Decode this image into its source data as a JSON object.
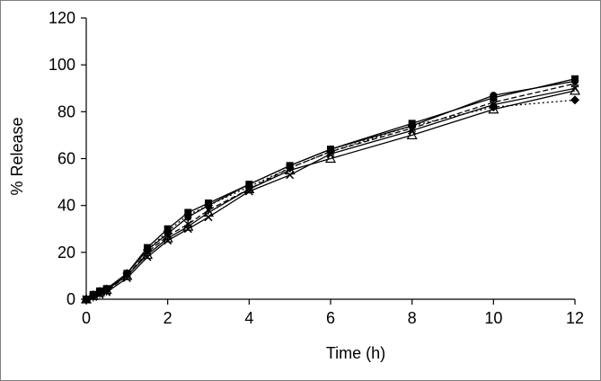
{
  "chart_data": {
    "type": "line",
    "title": "",
    "xlabel": "Time (h)",
    "ylabel": "% Release",
    "xlim": [
      0,
      12
    ],
    "ylim": [
      0,
      120
    ],
    "xticks": [
      0,
      2,
      4,
      6,
      8,
      10,
      12
    ],
    "yticks": [
      0,
      20,
      40,
      60,
      80,
      100,
      120
    ],
    "xtick_labels": [
      "0",
      "2",
      "4",
      "6",
      "8",
      "10",
      "12"
    ],
    "ytick_labels": [
      "0",
      "20",
      "40",
      "60",
      "80",
      "100",
      "120"
    ],
    "grid": false,
    "legend": "none",
    "x": [
      0,
      0.17,
      0.33,
      0.5,
      1,
      1.5,
      2,
      2.5,
      3,
      4,
      5,
      6,
      8,
      10,
      12
    ],
    "series": [
      {
        "marker": "diamond",
        "line_style": "dotted",
        "color": "#000000",
        "values": [
          0,
          1.5,
          3,
          4,
          11,
          21,
          29,
          36,
          40,
          48,
          56,
          63,
          74,
          82,
          85
        ]
      },
      {
        "marker": "square",
        "line_style": "solid",
        "color": "#000000",
        "values": [
          0,
          2,
          3.5,
          4.5,
          11,
          22,
          30,
          37,
          41,
          49,
          57,
          64,
          75,
          86,
          94
        ]
      },
      {
        "marker": "triangle",
        "line_style": "solid",
        "color": "#000000",
        "values": [
          0,
          1.5,
          3,
          4,
          10,
          19,
          26,
          31,
          37,
          47,
          55,
          60,
          70,
          81,
          89
        ]
      },
      {
        "marker": "x",
        "line_style": "solid",
        "color": "#000000",
        "values": [
          0,
          1,
          2,
          3,
          9,
          18,
          25,
          30,
          35,
          46,
          53,
          62,
          72,
          83,
          90
        ]
      },
      {
        "marker": "asterisk",
        "line_style": "dashed",
        "color": "#000000",
        "values": [
          0,
          1,
          2.5,
          3.5,
          10,
          20,
          27,
          32,
          38,
          47,
          56,
          63,
          73,
          84,
          92
        ]
      },
      {
        "marker": "circle",
        "line_style": "solid",
        "color": "#000000",
        "values": [
          0,
          1.5,
          3,
          4,
          11,
          21,
          28,
          35,
          40,
          49,
          57,
          64,
          74,
          87,
          93
        ]
      }
    ]
  }
}
